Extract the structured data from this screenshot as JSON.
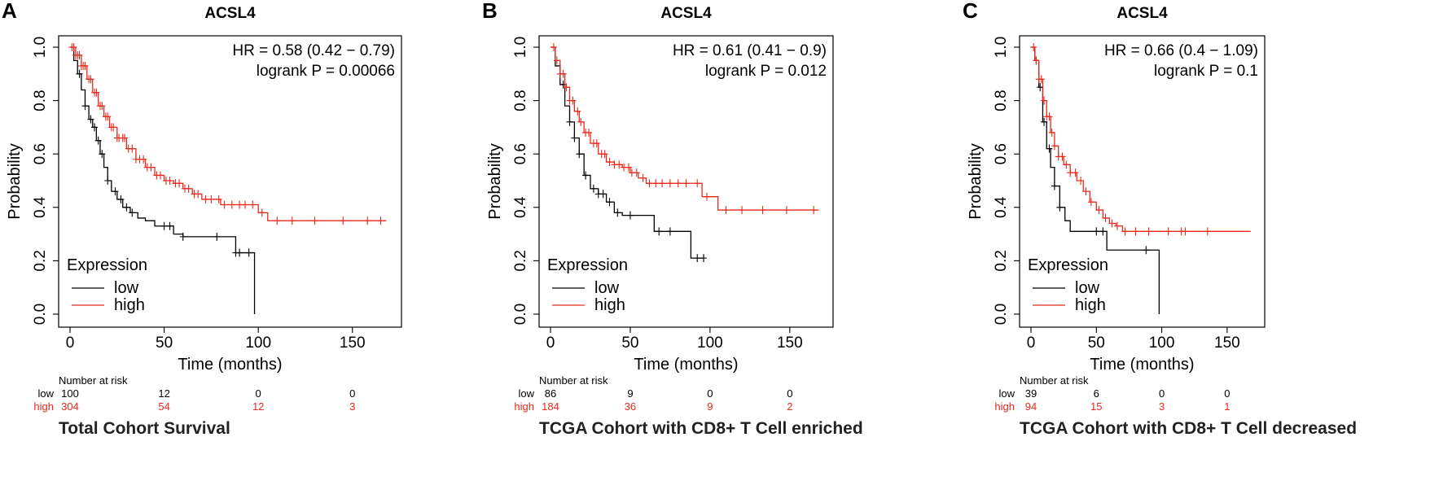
{
  "colors": {
    "low": "#000000",
    "high": "#e8291c",
    "frame": "#000000"
  },
  "chart_data": [
    {
      "type": "line",
      "panel_label": "A",
      "title": "ACSL4",
      "subtitle": "Total Cohort Survival",
      "xlabel": "Time (months)",
      "ylabel": "Probability",
      "xlim": [
        0,
        170
      ],
      "ylim": [
        0,
        1
      ],
      "xticks": [
        "0",
        "50",
        "100",
        "150"
      ],
      "yticks": [
        "0.0",
        "0.2",
        "0.4",
        "0.6",
        "0.8",
        "1.0"
      ],
      "annotations": [
        "HR = 0.58 (0.42 − 0.79)",
        "logrank P = 0.00066"
      ],
      "legend_title": "Expression",
      "series": [
        {
          "name": "low",
          "x": [
            0,
            2,
            4,
            6,
            8,
            10,
            12,
            14,
            16,
            18,
            20,
            22,
            25,
            28,
            32,
            36,
            40,
            45,
            50,
            55,
            60,
            70,
            80,
            88,
            98,
            98
          ],
          "y": [
            1.0,
            0.95,
            0.9,
            0.84,
            0.78,
            0.73,
            0.7,
            0.65,
            0.6,
            0.55,
            0.5,
            0.46,
            0.43,
            0.4,
            0.38,
            0.36,
            0.35,
            0.33,
            0.33,
            0.3,
            0.29,
            0.29,
            0.29,
            0.23,
            0.22,
            0.0
          ],
          "censors": [
            5,
            8,
            11,
            13,
            15,
            17,
            20,
            24,
            27,
            30,
            33,
            50,
            53,
            60,
            78,
            88,
            90,
            95
          ]
        },
        {
          "name": "high",
          "x": [
            0,
            3,
            6,
            9,
            12,
            15,
            18,
            21,
            25,
            30,
            35,
            40,
            45,
            50,
            55,
            60,
            65,
            70,
            80,
            90,
            100,
            105,
            120,
            140,
            168
          ],
          "y": [
            1.0,
            0.97,
            0.93,
            0.88,
            0.83,
            0.78,
            0.74,
            0.7,
            0.66,
            0.62,
            0.58,
            0.55,
            0.52,
            0.5,
            0.49,
            0.47,
            0.45,
            0.43,
            0.41,
            0.41,
            0.38,
            0.35,
            0.35,
            0.35,
            0.35
          ],
          "censors": [
            1,
            2,
            3,
            4,
            5,
            6,
            7,
            8,
            10,
            11,
            13,
            14,
            16,
            17,
            19,
            20,
            22,
            23,
            25,
            26,
            28,
            29,
            31,
            33,
            35,
            37,
            39,
            41,
            43,
            46,
            48,
            51,
            53,
            56,
            58,
            61,
            63,
            66,
            68,
            72,
            75,
            79,
            82,
            86,
            90,
            93,
            97,
            102,
            110,
            118,
            130,
            145,
            158,
            165
          ]
        }
      ],
      "risk_table": {
        "header": "Number at risk",
        "rows": [
          {
            "label": "low",
            "values": [
              "100",
              "12",
              "0",
              "0"
            ]
          },
          {
            "label": "high",
            "values": [
              "304",
              "54",
              "12",
              "3"
            ]
          }
        ]
      }
    },
    {
      "type": "line",
      "panel_label": "B",
      "title": "ACSL4",
      "subtitle": "TCGA Cohort with CD8+ T Cell enriched",
      "xlabel": "Time (months)",
      "ylabel": "Probability",
      "xlim": [
        0,
        170
      ],
      "ylim": [
        0,
        1
      ],
      "xticks": [
        "0",
        "50",
        "100",
        "150"
      ],
      "yticks": [
        "0.0",
        "0.2",
        "0.4",
        "0.6",
        "0.8",
        "1.0"
      ],
      "annotations": [
        "HR = 0.61 (0.41 − 0.9)",
        "logrank P = 0.012"
      ],
      "legend_title": "Expression",
      "series": [
        {
          "name": "low",
          "x": [
            0,
            3,
            6,
            9,
            12,
            15,
            18,
            21,
            25,
            30,
            35,
            40,
            45,
            55,
            65,
            75,
            88,
            96
          ],
          "y": [
            1.0,
            0.93,
            0.86,
            0.78,
            0.72,
            0.66,
            0.6,
            0.52,
            0.47,
            0.45,
            0.42,
            0.38,
            0.37,
            0.37,
            0.31,
            0.31,
            0.21,
            0.21
          ],
          "censors": [
            8,
            12,
            15,
            18,
            22,
            27,
            30,
            33,
            37,
            42,
            50,
            68,
            75,
            92,
            96
          ]
        },
        {
          "name": "high",
          "x": [
            0,
            3,
            6,
            9,
            12,
            15,
            18,
            21,
            25,
            30,
            35,
            40,
            45,
            50,
            55,
            60,
            65,
            70,
            80,
            95,
            100,
            105,
            120,
            140,
            168
          ],
          "y": [
            1.0,
            0.95,
            0.9,
            0.85,
            0.8,
            0.76,
            0.72,
            0.68,
            0.64,
            0.6,
            0.57,
            0.56,
            0.55,
            0.53,
            0.51,
            0.49,
            0.49,
            0.49,
            0.49,
            0.44,
            0.44,
            0.39,
            0.39,
            0.39,
            0.39
          ],
          "censors": [
            2,
            4,
            6,
            8,
            10,
            12,
            14,
            17,
            19,
            22,
            24,
            27,
            29,
            32,
            34,
            37,
            40,
            43,
            46,
            49,
            51,
            54,
            58,
            62,
            66,
            70,
            75,
            80,
            85,
            92,
            98,
            110,
            120,
            133,
            148,
            165
          ]
        }
      ],
      "risk_table": {
        "header": "Number at risk",
        "rows": [
          {
            "label": "low",
            "values": [
              "86",
              "9",
              "0",
              "0"
            ]
          },
          {
            "label": "high",
            "values": [
              "184",
              "36",
              "9",
              "2"
            ]
          }
        ]
      }
    },
    {
      "type": "line",
      "panel_label": "C",
      "title": "ACSL4",
      "subtitle": "TCGA Cohort with CD8+ T Cell decreased",
      "xlabel": "Time (months)",
      "ylabel": "Probability",
      "xlim": [
        0,
        170
      ],
      "ylim": [
        0,
        1
      ],
      "xticks": [
        "0",
        "50",
        "100",
        "150"
      ],
      "yticks": [
        "0.0",
        "0.2",
        "0.4",
        "0.6",
        "0.8",
        "1.0"
      ],
      "annotations": [
        "HR = 0.66 (0.4 − 1.09)",
        "logrank P = 0.1"
      ],
      "legend_title": "Expression",
      "series": [
        {
          "name": "low",
          "x": [
            0,
            3,
            6,
            9,
            12,
            15,
            18,
            22,
            26,
            30,
            50,
            58,
            70,
            90,
            98,
            98
          ],
          "y": [
            1.0,
            0.95,
            0.85,
            0.72,
            0.62,
            0.55,
            0.48,
            0.4,
            0.35,
            0.31,
            0.31,
            0.24,
            0.24,
            0.24,
            0.23,
            0.0
          ],
          "censors": [
            4,
            7,
            10,
            14,
            18,
            22,
            50,
            55,
            88
          ]
        },
        {
          "name": "high",
          "x": [
            0,
            3,
            6,
            9,
            12,
            15,
            18,
            21,
            25,
            30,
            35,
            40,
            45,
            50,
            55,
            60,
            65,
            70,
            90,
            120,
            168
          ],
          "y": [
            1.0,
            0.95,
            0.88,
            0.8,
            0.74,
            0.68,
            0.63,
            0.59,
            0.56,
            0.53,
            0.5,
            0.46,
            0.42,
            0.39,
            0.36,
            0.34,
            0.33,
            0.31,
            0.31,
            0.31,
            0.31
          ],
          "censors": [
            2,
            4,
            6,
            8,
            10,
            12,
            14,
            16,
            18,
            21,
            24,
            27,
            30,
            34,
            38,
            42,
            46,
            52,
            57,
            62,
            66,
            72,
            80,
            90,
            105,
            115,
            118,
            135
          ]
        }
      ],
      "risk_table": {
        "header": "Number at risk",
        "rows": [
          {
            "label": "low",
            "values": [
              "39",
              "6",
              "0",
              "0"
            ]
          },
          {
            "label": "high",
            "values": [
              "94",
              "15",
              "3",
              "1"
            ]
          }
        ]
      }
    }
  ]
}
